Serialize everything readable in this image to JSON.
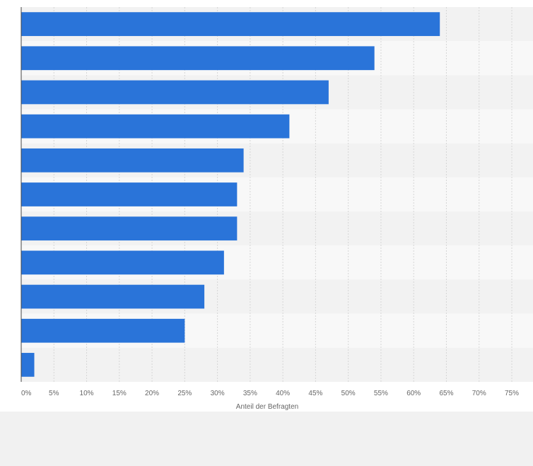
{
  "chart_data": {
    "type": "bar",
    "orientation": "horizontal",
    "categories": [
      "",
      "",
      "",
      "",
      "",
      "",
      "",
      "",
      "",
      "",
      ""
    ],
    "values": [
      64,
      54,
      47,
      41,
      34,
      33,
      33,
      31,
      28,
      25,
      2
    ],
    "xlabel": "Anteil der Befragten",
    "ylabel": "",
    "xlim": [
      0,
      75
    ],
    "x_ticks": [
      "0%",
      "5%",
      "10%",
      "15%",
      "20%",
      "25%",
      "30%",
      "35%",
      "40%",
      "45%",
      "50%",
      "55%",
      "60%",
      "65%",
      "70%",
      "75%"
    ],
    "grid": "vertical dashed",
    "colors": {
      "bar": "#2a74d9",
      "band_dark": "#f2f2f2",
      "band_light": "#f8f8f8",
      "grid": "#d6d6d6",
      "axis": "#444444",
      "tick_text": "#666666",
      "footer": "#f1f1f1"
    }
  }
}
